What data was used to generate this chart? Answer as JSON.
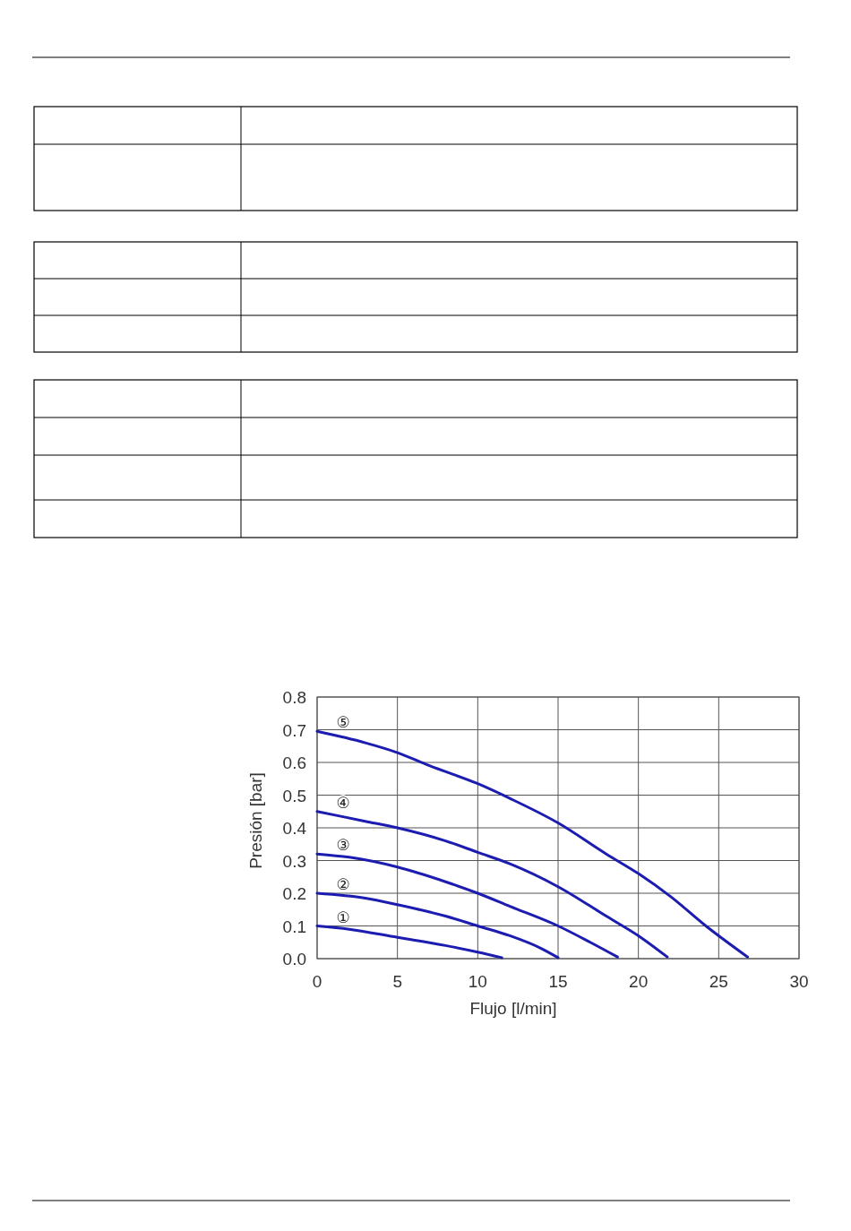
{
  "chart_data": {
    "type": "line",
    "xlabel": "Flujo [l/min]",
    "ylabel": "Presión [bar]",
    "xlim": [
      0,
      30
    ],
    "ylim": [
      0,
      0.8
    ],
    "xticks": [
      0,
      5,
      10,
      15,
      20,
      25,
      30
    ],
    "yticks": [
      {
        "value": 0,
        "label": "0.0"
      },
      0.1,
      0.2,
      0.3,
      0.4,
      0.5,
      0.6,
      0.7,
      0.8
    ],
    "grid": true,
    "marker": "none",
    "line_style": "solid",
    "series": [
      {
        "name": "①",
        "color": "#1c1cb0",
        "x": [
          0,
          2,
          5,
          8,
          10,
          11.5
        ],
        "values": [
          0.1,
          0.09,
          0.065,
          0.04,
          0.02,
          0.003
        ]
      },
      {
        "name": "②",
        "color": "#1c1cb0",
        "x": [
          0,
          3,
          5,
          8,
          10,
          12,
          14,
          15
        ],
        "values": [
          0.2,
          0.185,
          0.165,
          0.13,
          0.1,
          0.07,
          0.03,
          0.003
        ]
      },
      {
        "name": "③",
        "color": "#1c1cb0",
        "x": [
          0,
          2,
          5,
          8,
          10,
          12,
          15,
          17,
          18.7
        ],
        "values": [
          0.32,
          0.31,
          0.28,
          0.235,
          0.2,
          0.16,
          0.1,
          0.05,
          0.005
        ]
      },
      {
        "name": "④",
        "color": "#1c1cb0",
        "x": [
          0,
          3,
          5,
          8,
          10,
          12,
          15,
          18,
          20,
          21.8
        ],
        "values": [
          0.45,
          0.42,
          0.4,
          0.36,
          0.325,
          0.29,
          0.22,
          0.13,
          0.07,
          0.005
        ]
      },
      {
        "name": "⑤",
        "color": "#1c1cb0",
        "x": [
          0,
          3,
          5,
          7,
          10,
          12,
          15,
          18,
          20,
          22,
          24.2,
          26.8
        ],
        "values": [
          0.695,
          0.66,
          0.63,
          0.59,
          0.535,
          0.49,
          0.415,
          0.32,
          0.26,
          0.19,
          0.1,
          0.005
        ]
      }
    ]
  }
}
